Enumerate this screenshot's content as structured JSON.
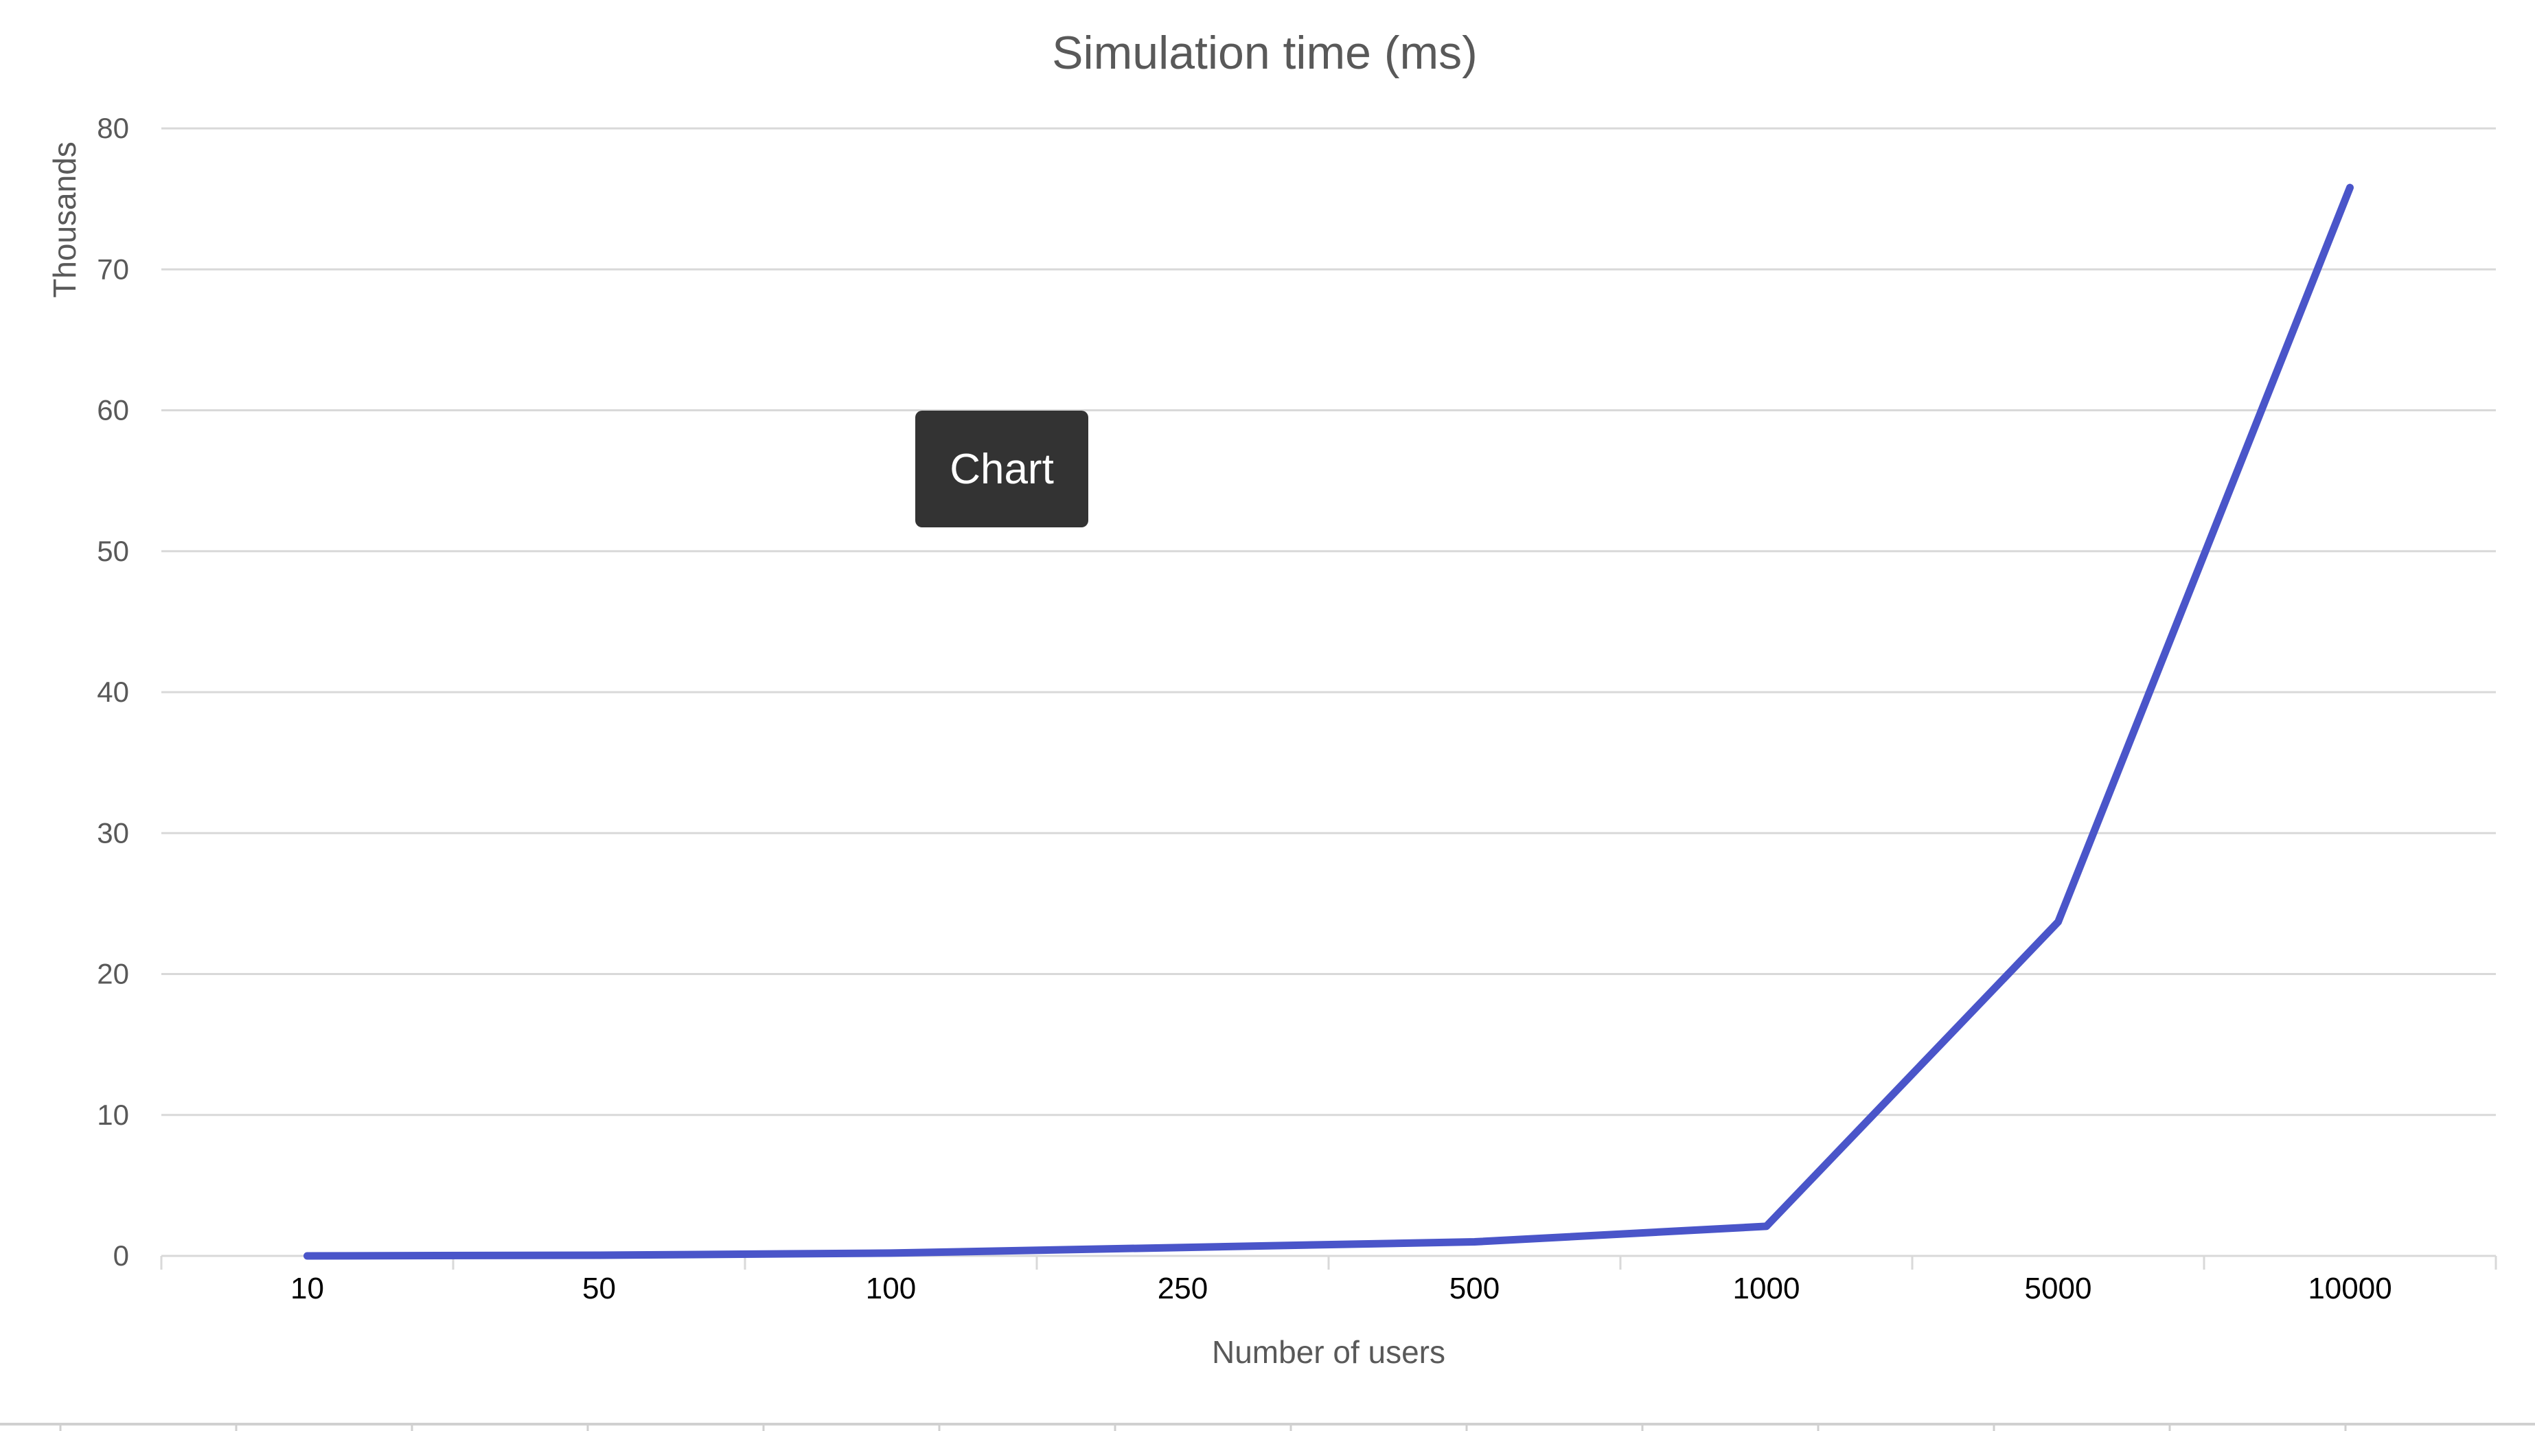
{
  "tooltip": {
    "label": "Chart"
  },
  "chart_data": {
    "type": "line",
    "title": "Simulation time (ms)",
    "xlabel": "Number of users",
    "ylabel": "Thousands",
    "categories": [
      "10",
      "50",
      "100",
      "250",
      "500",
      "1000",
      "5000",
      "10000"
    ],
    "series": [
      {
        "color": "#4a55c9",
        "values": [
          0,
          0.05,
          0.2,
          0.6,
          1.0,
          2.1,
          23.7,
          75.8
        ]
      }
    ],
    "ylim": [
      0,
      80
    ],
    "yticks": [
      "0",
      "10",
      "20",
      "30",
      "40",
      "50",
      "60",
      "70",
      "80"
    ],
    "grid": true,
    "legend": "none"
  }
}
